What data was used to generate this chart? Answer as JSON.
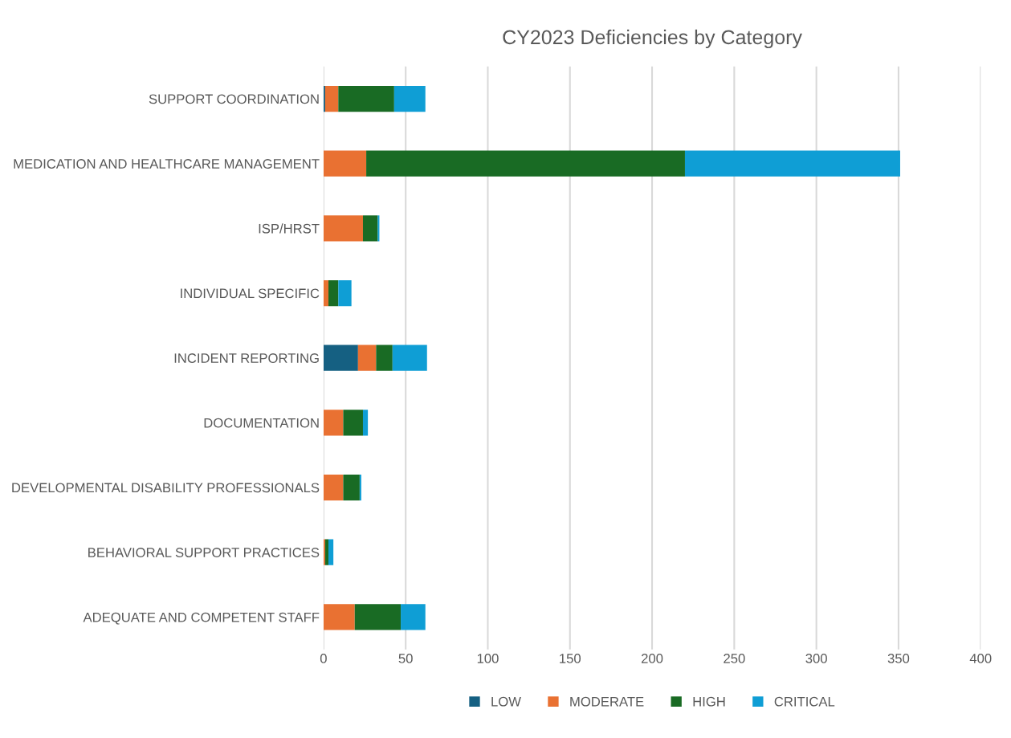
{
  "chart_data": {
    "type": "bar",
    "orientation": "horizontal",
    "stacked": true,
    "title": "CY2023 Deficiencies by Category",
    "categories": [
      "SUPPORT COORDINATION",
      "MEDICATION AND HEALTHCARE MANAGEMENT",
      "ISP/HRST",
      "INDIVIDUAL SPECIFIC",
      "INCIDENT REPORTING",
      "DOCUMENTATION",
      "DEVELOPMENTAL DISABILITY PROFESSIONALS",
      "BEHAVIORAL SUPPORT PRACTICES",
      "ADEQUATE AND COMPETENT STAFF"
    ],
    "series": [
      {
        "name": "LOW",
        "color": "#156082",
        "values": [
          1,
          0,
          0,
          0,
          21,
          0,
          0,
          0,
          0
        ]
      },
      {
        "name": "MODERATE",
        "color": "#e97132",
        "values": [
          8,
          26,
          24,
          3,
          11,
          12,
          12,
          1,
          19
        ]
      },
      {
        "name": "HIGH",
        "color": "#196b24",
        "values": [
          34,
          194,
          9,
          6,
          10,
          12,
          10,
          2,
          28
        ]
      },
      {
        "name": "CRITICAL",
        "color": "#0f9ed5",
        "values": [
          19,
          131,
          1,
          8,
          21,
          3,
          1,
          3,
          15
        ]
      }
    ],
    "xlim": [
      0,
      400
    ],
    "xticks": [
      0,
      50,
      100,
      150,
      200,
      250,
      300,
      350,
      400
    ],
    "grid": "x",
    "legend": "bottom"
  }
}
